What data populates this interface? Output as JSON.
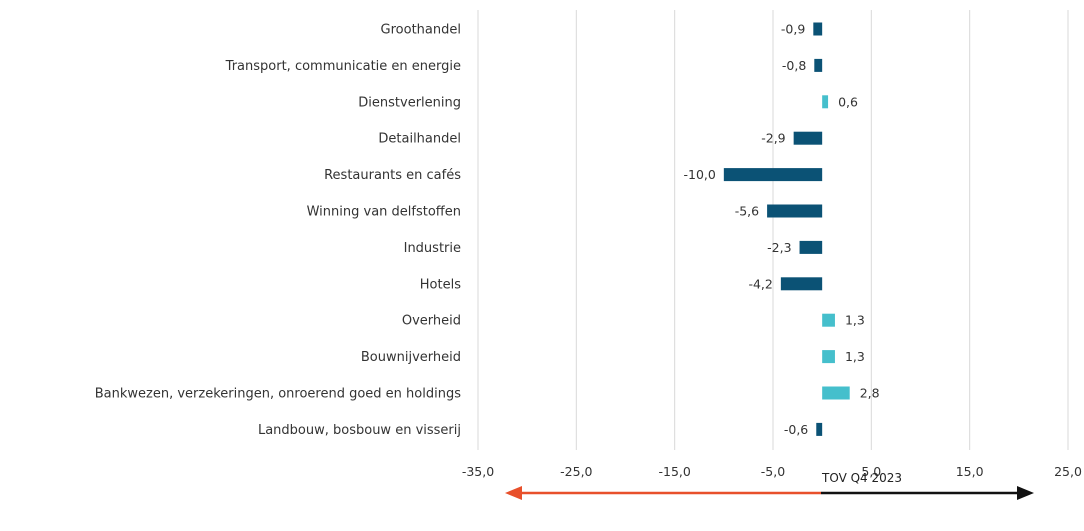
{
  "chart_data": {
    "type": "bar",
    "orientation": "horizontal",
    "categories": [
      "Groothandel",
      "Transport, communicatie en energie",
      "Dienstverlening",
      "Detailhandel",
      "Restaurants en cafés",
      "Winning van delfstoffen",
      "Industrie",
      "Hotels",
      "Overheid",
      "Bouwnijverheid",
      "Bankwezen, verzekeringen, onroerend goed en holdings",
      "Landbouw, bosbouw en visserij"
    ],
    "values": [
      -0.9,
      -0.8,
      0.6,
      -2.9,
      -10.0,
      -5.6,
      -2.3,
      -4.2,
      1.3,
      1.3,
      2.8,
      -0.6
    ],
    "value_labels": [
      "-0,9",
      "-0,8",
      "0,6",
      "-2,9",
      "-10,0",
      "-5,6",
      "-2,3",
      "-4,2",
      "1,3",
      "1,3",
      "2,8",
      "-0,6"
    ],
    "xlim": [
      -35,
      25
    ],
    "ticks": [
      -35,
      -25,
      -15,
      -5,
      5,
      15,
      25
    ],
    "tick_labels": [
      "-35,0",
      "-25,0",
      "-15,0",
      "-5,0",
      "5,0",
      "15,0",
      "25,0"
    ],
    "grid": true,
    "colors": {
      "negative": "#0b5275",
      "positive": "#45bfcc",
      "grid": "#d9d9d9",
      "arrow_left": "#e8502b",
      "arrow_right": "#111111"
    },
    "annotation": "TOV Q4 2023"
  }
}
